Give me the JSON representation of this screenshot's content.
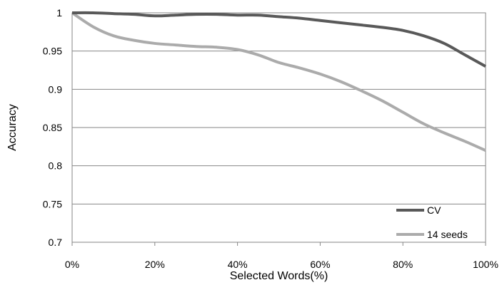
{
  "chart_data": {
    "type": "line",
    "title": "",
    "xlabel": "Selected Words(%)",
    "ylabel": "Accuracy",
    "x": [
      0,
      5,
      10,
      15,
      20,
      25,
      30,
      35,
      40,
      45,
      50,
      55,
      60,
      65,
      70,
      75,
      80,
      85,
      90,
      95,
      100
    ],
    "xticks": [
      "0%",
      "20%",
      "40%",
      "60%",
      "80%",
      "100%"
    ],
    "xtick_values": [
      0,
      20,
      40,
      60,
      80,
      100
    ],
    "yticks": [
      "0.7",
      "0.75",
      "0.8",
      "0.85",
      "0.9",
      "0.95",
      "1"
    ],
    "ytick_values": [
      0.7,
      0.75,
      0.8,
      0.85,
      0.9,
      0.95,
      1.0
    ],
    "xlim": [
      0,
      100
    ],
    "ylim": [
      0.7,
      1.0
    ],
    "grid": "horizontal",
    "legend_position": "bottom-right",
    "series": [
      {
        "name": "CV",
        "color": "#595959",
        "values": [
          1.0,
          1.0,
          0.999,
          0.998,
          0.996,
          0.997,
          0.998,
          0.998,
          0.997,
          0.997,
          0.995,
          0.993,
          0.99,
          0.987,
          0.984,
          0.981,
          0.977,
          0.97,
          0.96,
          0.945,
          0.93
        ]
      },
      {
        "name": "14 seeds",
        "color": "#ababab",
        "values": [
          1.0,
          0.982,
          0.97,
          0.964,
          0.96,
          0.958,
          0.956,
          0.955,
          0.952,
          0.945,
          0.935,
          0.928,
          0.92,
          0.91,
          0.898,
          0.885,
          0.87,
          0.855,
          0.843,
          0.832,
          0.82
        ]
      }
    ]
  }
}
